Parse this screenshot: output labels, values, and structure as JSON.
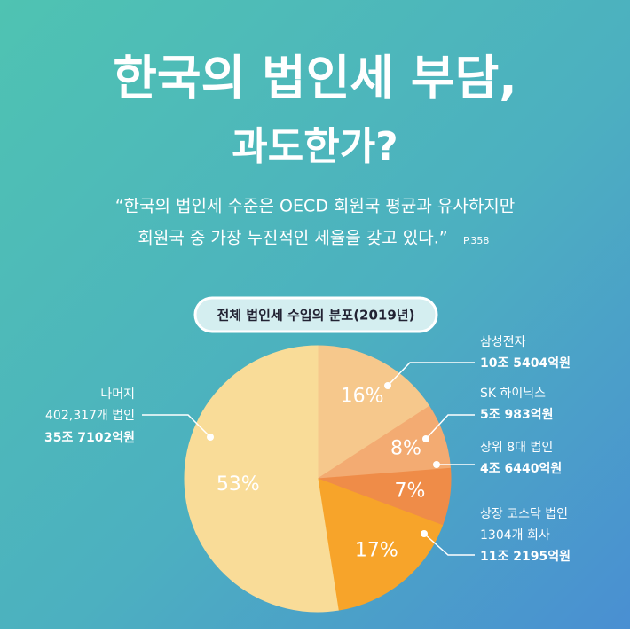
{
  "header": {
    "title_lines": [
      "한국의 법인세 부담,",
      "과도한가?"
    ],
    "quote_lines": [
      "“한국의 법인세 수준은 OECD 회원국 평균과 유사하지만",
      "회원국 중 가장 누진적인 세율을 갖고 있다.”"
    ],
    "page_ref": "P.358"
  },
  "chart_data": {
    "type": "pie",
    "title": "전체 법인세 수입의 분포(2019년)",
    "categories": [
      "삼성전자",
      "SK 하이닉스",
      "상위 8대 법인",
      "상장 코스닥 법인",
      "나머지"
    ],
    "notes": [
      null,
      null,
      null,
      "1304개 회사",
      "402,317개 법인"
    ],
    "amounts": [
      "10조 5404억원",
      "5조 983억원",
      "4조 6440억원",
      "11조 2195억원",
      "35조 7102억원"
    ],
    "values": [
      16,
      8,
      7,
      17,
      53
    ],
    "value_labels": [
      "16%",
      "8%",
      "7%",
      "17%",
      "53%"
    ],
    "colors": [
      "#f6c88c",
      "#f3ab72",
      "#ef8c48",
      "#f7a42a",
      "#f9dc98"
    ]
  }
}
